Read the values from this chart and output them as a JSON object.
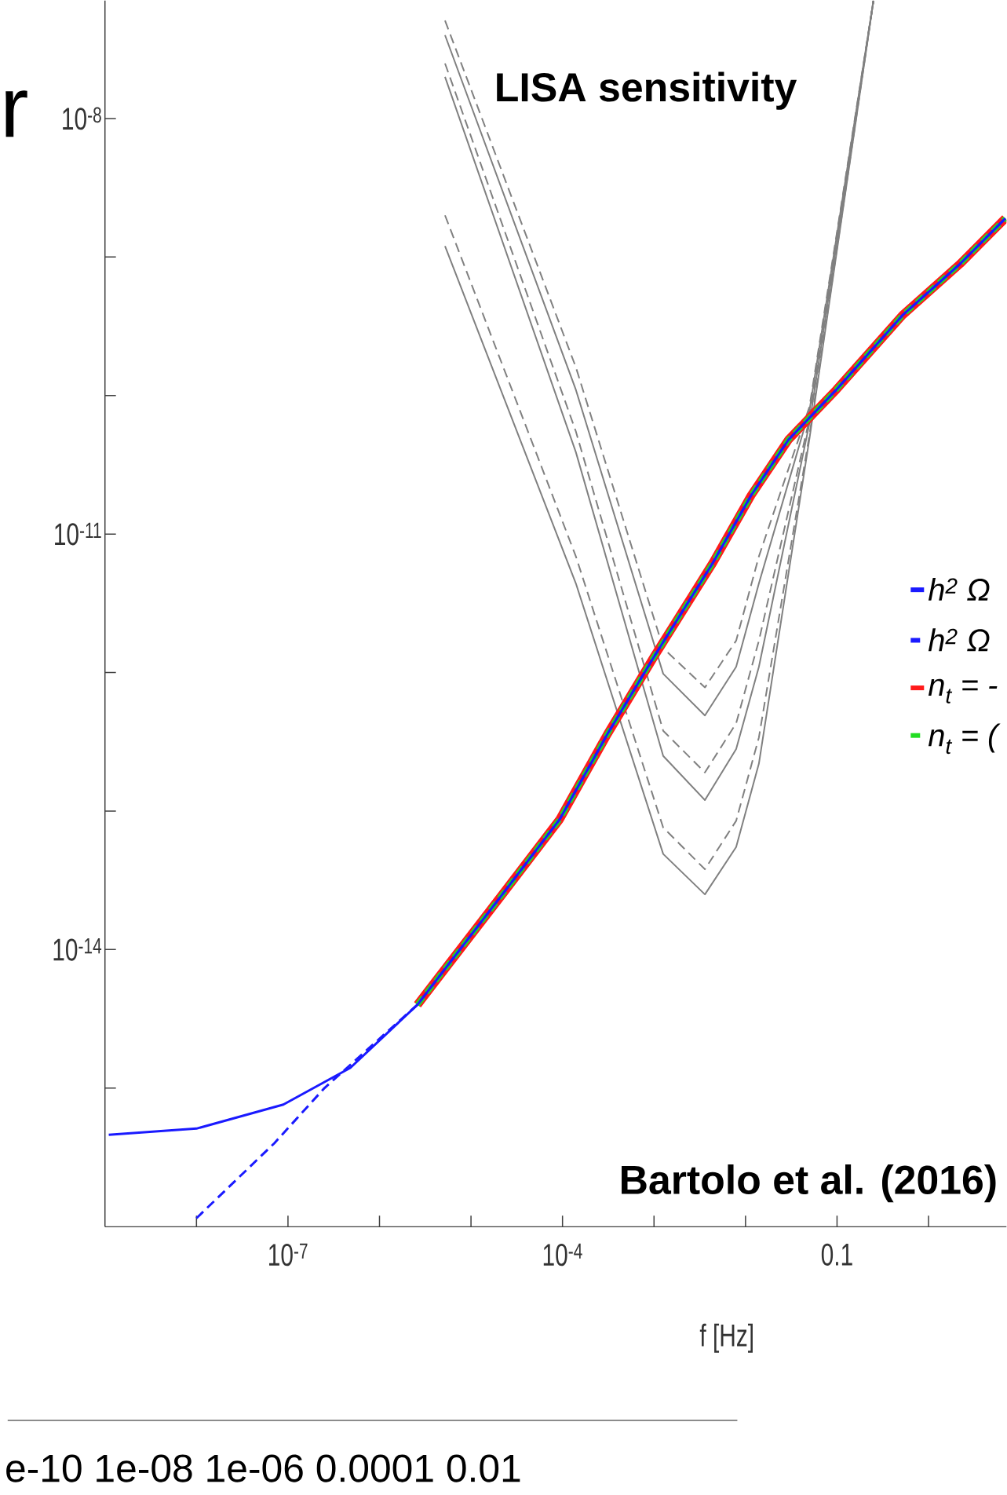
{
  "chart_data": {
    "type": "line",
    "log": "xy",
    "xlabel": "f [Hz]",
    "legend": "right",
    "marker": "none",
    "xlim": [
      1e-09,
      7.1
    ],
    "ylim": [
      1e-16,
      7.1e-08
    ],
    "xticks": [
      {
        "value": 1e-08,
        "label": null
      },
      {
        "value": 1e-07,
        "label": "10$^{-7}$"
      },
      {
        "value": 1e-06,
        "label": null
      },
      {
        "value": 1e-05,
        "label": null
      },
      {
        "value": 0.0001,
        "label": "10$^{-4}$"
      },
      {
        "value": 0.001,
        "label": null
      },
      {
        "value": 0.01,
        "label": null
      },
      0.1,
      {
        "value": 1,
        "label": null
      }
    ],
    "yticks": [
      {
        "value": 1e-15,
        "label": null
      },
      {
        "value": 1e-14,
        "label": "10$^{-14}$"
      },
      {
        "value": 1e-13,
        "label": null
      },
      {
        "value": 1e-12,
        "label": null
      },
      {
        "value": 1e-11,
        "label": "10$^{-11}$"
      },
      {
        "value": 1e-10,
        "label": null
      },
      {
        "value": 1e-09,
        "label": null
      },
      {
        "value": 1e-08,
        "label": "10$^{-8}$"
      }
    ],
    "annotations": [
      "LISA sensitivity",
      "Bartolo et al. (2016)",
      "r",
      "e-10  1e-08  1e-06 0.0001  0.01"
    ],
    "series": [
      {
        "name": "*h*$^{2}$ Ω",
        "color": "#1a1aff",
        "line_style": "solid",
        "x": [
          1.1e-09,
          1e-08,
          8.9e-08,
          4.8e-07,
          2.6e-06,
          2.2e-05,
          9.3e-05,
          0.00031,
          0.001,
          0.0044,
          0.0115,
          0.0295,
          0.098,
          0.52,
          2.2,
          6.9
        ],
        "values": [
          4.6e-16,
          5.1e-16,
          7.6e-16,
          1.4e-15,
          4e-15,
          2.5e-14,
          8.7e-14,
          3.6e-13,
          1.3e-12,
          6.2e-12,
          1.9e-11,
          4.8e-11,
          1.1e-10,
          3.8e-10,
          8.9e-10,
          1.9e-09
        ]
      },
      {
        "name": "*h*$^{2}$ Ω",
        "color": "#1a1aff",
        "line_style": "dashed",
        "x": [
          1e-08,
          7.1e-08,
          2.5e-07,
          2.6e-06,
          2.2e-05,
          9.3e-05,
          0.00031,
          0.001,
          0.0044,
          0.0115,
          0.0295,
          0.098,
          0.52,
          2.2,
          6.9
        ],
        "values": [
          1.15e-16,
          4e-16,
          1e-15,
          4e-15,
          2.5e-14,
          8.7e-14,
          3.6e-13,
          1.3e-12,
          6.2e-12,
          1.9e-11,
          4.8e-11,
          1.1e-10,
          3.8e-10,
          8.9e-10,
          1.9e-09
        ]
      },
      {
        "name": "n$_{t}$ = -",
        "color": "#ff1a1a",
        "line_style": "solid",
        "x": [
          2.6e-06,
          2.2e-05,
          9.3e-05,
          0.00031,
          0.001,
          0.0044,
          0.0115,
          0.0295,
          0.098,
          0.52,
          2.2,
          6.9
        ],
        "values": [
          4e-15,
          2.5e-14,
          8.7e-14,
          3.6e-13,
          1.3e-12,
          6.2e-12,
          1.9e-11,
          4.8e-11,
          1.1e-10,
          3.8e-10,
          8.9e-10,
          1.9e-09
        ]
      },
      {
        "name": "n$_{t}$ = (",
        "color": "#22dd22",
        "line_style": "dashed",
        "x": [
          2.6e-06,
          2.2e-05,
          9.3e-05,
          0.00031,
          0.001,
          0.0044,
          0.0115,
          0.0295,
          0.098,
          0.52,
          2.2,
          6.9
        ],
        "values": [
          4e-15,
          2.5e-14,
          8.7e-14,
          3.6e-13,
          1.3e-12,
          6.2e-12,
          1.9e-11,
          4.8e-11,
          1.1e-10,
          3.8e-10,
          8.9e-10,
          1.9e-09
        ]
      },
      {
        "color": "#808080",
        "line_style": "dashed",
        "x": [
          5.2e-06,
          0.00014,
          0.00126,
          0.0036,
          0.0079,
          0.014,
          0.05,
          0.25
        ],
        "values": [
          5.1e-08,
          1.6e-10,
          1.5e-12,
          7.8e-13,
          1.7e-12,
          6.9e-12,
          8.3e-11,
          7.1e-08
        ]
      },
      {
        "color": "#808080",
        "line_style": "solid",
        "x": [
          5.2e-06,
          0.00014,
          0.00126,
          0.0036,
          0.0079,
          0.014,
          0.05,
          0.25
        ],
        "values": [
          4e-08,
          1.1e-10,
          9.8e-13,
          4.9e-13,
          1.1e-12,
          4.4e-12,
          7.8e-11,
          7.1e-08
        ]
      },
      {
        "color": "#808080",
        "line_style": "dashed",
        "x": [
          5.2e-06,
          0.00014,
          0.00126,
          0.0036,
          0.0079,
          0.014,
          0.05,
          0.25
        ],
        "values": [
          2.5e-08,
          5.5e-11,
          3.8e-13,
          1.9e-13,
          4.3e-13,
          1.7e-12,
          6.8e-11,
          7.1e-08
        ]
      },
      {
        "color": "#808080",
        "line_style": "solid",
        "x": [
          5.2e-06,
          0.00014,
          0.00126,
          0.0036,
          0.0079,
          0.014,
          0.05,
          0.25
        ],
        "values": [
          2e-08,
          3.9e-11,
          2.5e-13,
          1.2e-13,
          2.8e-13,
          1.1e-12,
          6.3e-11,
          7.1e-08
        ]
      },
      {
        "color": "#808080",
        "line_style": "dashed",
        "x": [
          5.2e-06,
          0.00014,
          0.00126,
          0.0036,
          0.0079,
          0.014,
          0.05,
          0.25
        ],
        "values": [
          2e-09,
          6.9e-12,
          7.6e-14,
          3.8e-14,
          8.5e-14,
          3.4e-13,
          5.2e-11,
          7.1e-08
        ]
      },
      {
        "color": "#808080",
        "line_style": "solid",
        "x": [
          5.2e-06,
          0.00014,
          0.00126,
          0.0036,
          0.0079,
          0.014,
          0.05,
          0.25
        ],
        "values": [
          1.2e-09,
          4.4e-12,
          4.9e-14,
          2.5e-14,
          5.5e-14,
          2.2e-13,
          4.9e-11,
          7.1e-08
        ]
      }
    ]
  }
}
